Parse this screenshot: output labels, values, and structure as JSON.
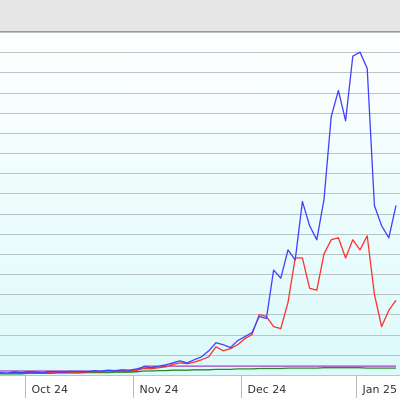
{
  "chart_data": {
    "type": "line",
    "categories": [
      null,
      null,
      null,
      null,
      "Oct 24",
      null,
      null,
      null,
      null,
      null,
      null,
      null,
      null,
      null,
      null,
      null,
      null,
      null,
      null,
      "Nov 24",
      null,
      null,
      null,
      null,
      null,
      null,
      null,
      null,
      null,
      null,
      null,
      null,
      null,
      null,
      "Dec 24",
      null,
      null,
      null,
      null,
      null,
      null,
      null,
      null,
      null,
      null,
      null,
      null,
      null,
      null,
      null,
      "Jan 25",
      null,
      null,
      null,
      null,
      null
    ],
    "series": [
      {
        "color": "#a040c0",
        "values": [
          10,
          10,
          10,
          10,
          10,
          10,
          10,
          10,
          10,
          10,
          10,
          10,
          10,
          10,
          10,
          10,
          10,
          10,
          10,
          10,
          22,
          22,
          22,
          22,
          22,
          22,
          22,
          22,
          22,
          22,
          22,
          22,
          22,
          22,
          22,
          22,
          22,
          22,
          22,
          22,
          22,
          22,
          22,
          22,
          22,
          22,
          22,
          22,
          22,
          22,
          22,
          22,
          22,
          22,
          22,
          22
        ]
      },
      {
        "color": "#2a8a2a",
        "values": [
          3,
          3,
          3,
          3,
          4,
          4,
          4,
          4,
          5,
          5,
          5,
          5,
          6,
          6,
          6,
          6,
          7,
          7,
          7,
          8,
          10,
          10,
          11,
          11,
          12,
          12,
          12,
          13,
          13,
          13,
          14,
          14,
          14,
          15,
          15,
          15,
          16,
          16,
          16,
          16,
          17,
          17,
          17,
          17,
          17,
          18,
          18,
          18,
          18,
          18,
          18,
          17,
          17,
          17,
          17,
          17
        ]
      },
      {
        "color": "#ff3030",
        "values": [
          4,
          4,
          5,
          5,
          6,
          5,
          5,
          7,
          6,
          6,
          8,
          7,
          7,
          9,
          8,
          10,
          9,
          11,
          10,
          12,
          16,
          15,
          18,
          20,
          26,
          30,
          28,
          32,
          38,
          45,
          70,
          60,
          65,
          75,
          90,
          100,
          150,
          145,
          120,
          115,
          180,
          290,
          290,
          215,
          210,
          300,
          335,
          340,
          290,
          335,
          310,
          345,
          200,
          120,
          160,
          185
        ]
      },
      {
        "color": "#4040ff",
        "values": [
          6,
          5,
          7,
          6,
          8,
          7,
          6,
          9,
          8,
          7,
          10,
          9,
          8,
          11,
          10,
          12,
          11,
          13,
          12,
          15,
          20,
          18,
          22,
          25,
          30,
          35,
          30,
          38,
          45,
          60,
          80,
          75,
          68,
          85,
          95,
          105,
          145,
          140,
          260,
          240,
          310,
          285,
          430,
          370,
          335,
          435,
          640,
          705,
          630,
          790,
          800,
          760,
          420,
          370,
          340,
          420
        ]
      }
    ],
    "ylim": [
      0,
      850
    ],
    "yticks": [
      0,
      50,
      100,
      150,
      200,
      250,
      300,
      350,
      400,
      450,
      500,
      550,
      600,
      650,
      700,
      750,
      800,
      850
    ],
    "grid": true
  }
}
